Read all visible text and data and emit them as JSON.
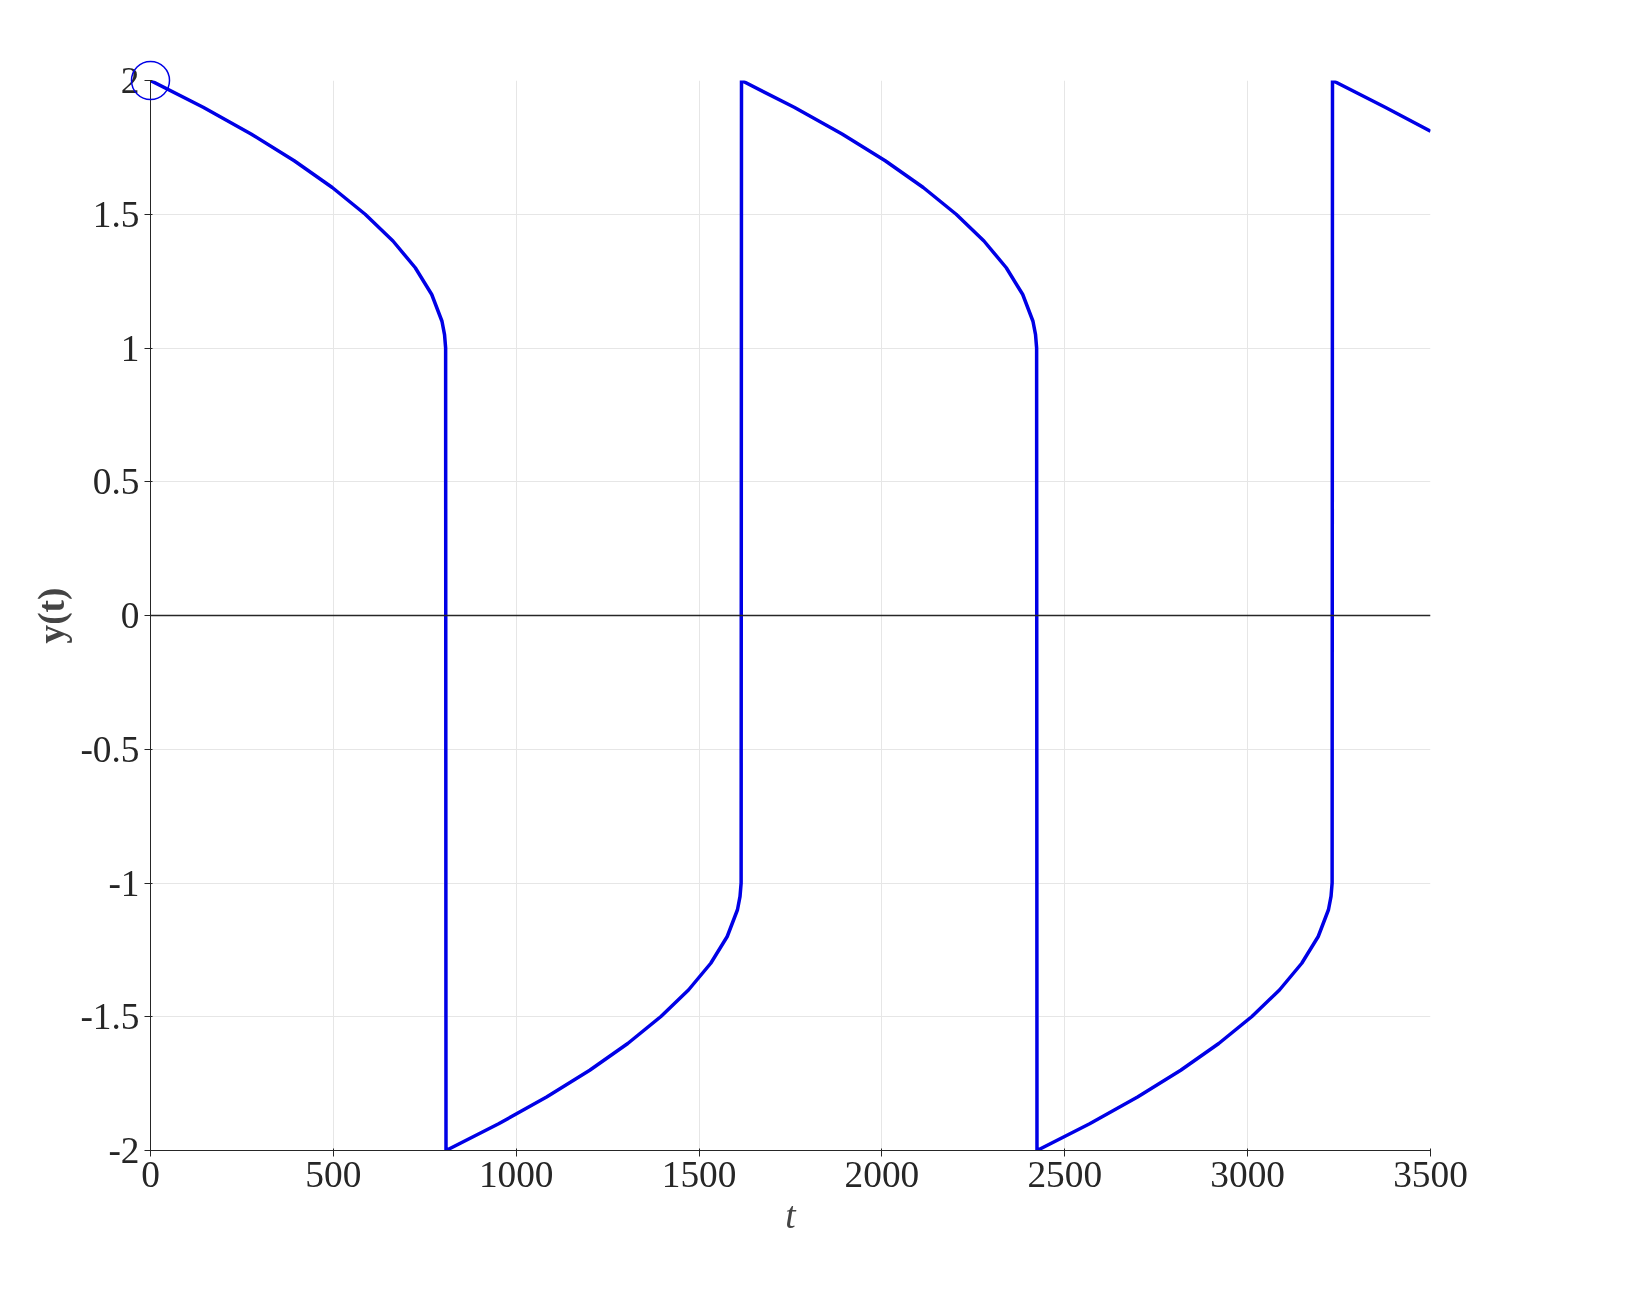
{
  "chart_data": {
    "type": "line",
    "xlabel": "t",
    "ylabel": "y(t)",
    "xlim": [
      0,
      3500
    ],
    "ylim": [
      -2,
      2
    ],
    "xticks": [
      0,
      500,
      1000,
      1500,
      2000,
      2500,
      3000,
      3500
    ],
    "yticks": [
      -2,
      -1.5,
      -1,
      -0.5,
      0,
      0.5,
      1,
      1.5,
      2
    ],
    "grid": true,
    "line_style": "solid",
    "marker": "none",
    "series": [
      {
        "color": "#0000e6",
        "x": [
          0,
          144,
          275,
          393,
          497,
          587,
          663,
          724,
          769,
          797,
          804,
          807,
          808,
          952,
          1083,
          1201,
          1305,
          1395,
          1471,
          1532,
          1577,
          1605,
          1612,
          1615,
          1616,
          1760,
          1891,
          2009,
          2113,
          2203,
          2279,
          2340,
          2385,
          2413,
          2420,
          2423,
          2424,
          2568,
          2699,
          2817,
          2921,
          3011,
          3087,
          3148,
          3193,
          3221,
          3228,
          3231,
          3232,
          3376,
          3500
        ],
        "values": [
          2,
          1.9,
          1.8,
          1.7,
          1.6,
          1.5,
          1.4,
          1.3,
          1.2,
          1.1,
          1.05,
          1.0,
          -2,
          -1.9,
          -1.8,
          -1.7,
          -1.6,
          -1.5,
          -1.4,
          -1.3,
          -1.2,
          -1.1,
          -1.05,
          -1.0,
          2,
          1.9,
          1.8,
          1.7,
          1.6,
          1.5,
          1.4,
          1.3,
          1.2,
          1.1,
          1.05,
          1.0,
          -2,
          -1.9,
          -1.8,
          -1.7,
          -1.6,
          -1.5,
          -1.4,
          -1.3,
          -1.2,
          -1.1,
          -1.05,
          -1.0,
          2,
          1.9,
          1.81
        ]
      },
      {
        "type": "scatter",
        "marker": "circle",
        "color": "#0000e6",
        "x": [
          0
        ],
        "values": [
          2
        ]
      }
    ],
    "ref_lines": [
      {
        "axis": "y",
        "value": 0,
        "color": "#262626",
        "line_style": "solid"
      }
    ]
  }
}
